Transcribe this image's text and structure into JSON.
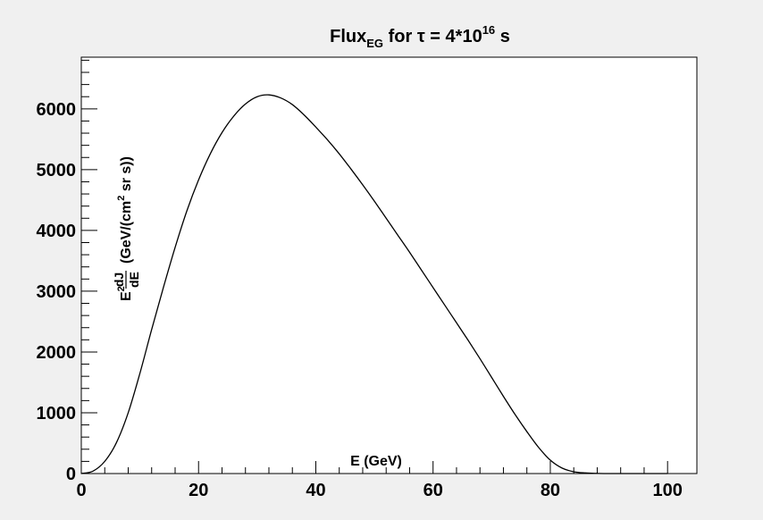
{
  "chart_data": {
    "type": "line",
    "title": {
      "main": "Flux",
      "main_sub": "EG",
      "mid": " for τ = 4*10",
      "mid_sup": "16",
      "tail": " s"
    },
    "xlabel": "E (GeV)",
    "ylabel": {
      "e": "E",
      "e_sup": "2",
      "num": "dJ",
      "den": "dE",
      "units_a": "(GeV/(cm",
      "units_sup": "2",
      "units_b": " sr s))"
    },
    "xlim": [
      0,
      105
    ],
    "ylim": [
      0,
      6850
    ],
    "x_ticks": [
      0,
      20,
      40,
      60,
      80,
      100
    ],
    "x_tick_labels": [
      "0",
      "20",
      "40",
      "60",
      "80",
      "100"
    ],
    "y_ticks": [
      0,
      1000,
      2000,
      3000,
      4000,
      5000,
      6000
    ],
    "y_tick_labels": [
      "0",
      "1000",
      "2000",
      "3000",
      "4000",
      "5000",
      "6000"
    ],
    "grid": false,
    "series": [
      {
        "color": "#000000",
        "x": [
          0,
          2,
          4,
          6,
          8,
          10,
          12,
          14,
          16,
          18,
          20,
          22,
          24,
          26,
          28,
          30,
          32,
          34,
          36,
          38,
          40,
          42,
          44,
          46,
          48,
          50,
          52,
          54,
          56,
          58,
          60,
          62,
          64,
          66,
          68,
          70,
          72,
          74,
          76,
          78,
          80,
          82,
          84,
          86,
          88,
          90,
          95,
          100
        ],
        "y": [
          0,
          40,
          200,
          510,
          1000,
          1650,
          2370,
          3060,
          3720,
          4320,
          4830,
          5260,
          5610,
          5880,
          6080,
          6200,
          6230,
          6180,
          6070,
          5900,
          5700,
          5490,
          5260,
          5010,
          4750,
          4480,
          4200,
          3920,
          3640,
          3350,
          3060,
          2770,
          2480,
          2190,
          1890,
          1580,
          1270,
          970,
          690,
          430,
          220,
          90,
          30,
          10,
          3,
          0,
          0,
          0
        ]
      }
    ]
  }
}
